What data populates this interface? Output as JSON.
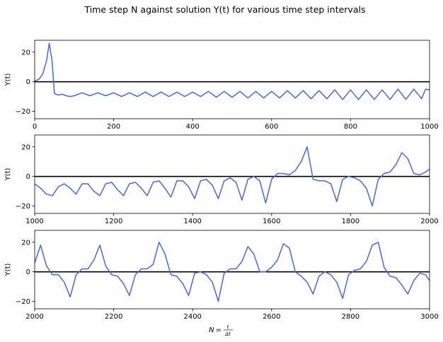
{
  "chart_data": {
    "type": "line",
    "title": "Time step N against solution Y(t) for various time step intervals",
    "xlabel": "N = t/Δt",
    "xlabel_parts": {
      "lhs": "N",
      "eq": "=",
      "num": "t",
      "den": "Δt"
    },
    "line_color": "#4169E1",
    "zero_line_color": "#000000",
    "grid": false,
    "subplots": [
      {
        "ylabel": "Y(t)",
        "xlim": [
          0,
          1000
        ],
        "ylim": [
          -25,
          28
        ],
        "xticks": [
          0,
          200,
          400,
          600,
          800,
          1000
        ],
        "yticks": [
          -20,
          0,
          20
        ],
        "x": [
          0,
          10,
          20,
          30,
          37,
          44,
          50,
          60,
          70,
          80,
          90,
          100,
          120,
          140,
          160,
          180,
          200,
          220,
          240,
          260,
          280,
          300,
          320,
          340,
          360,
          380,
          400,
          420,
          440,
          460,
          480,
          500,
          520,
          540,
          560,
          580,
          600,
          620,
          640,
          660,
          680,
          700,
          720,
          740,
          760,
          780,
          800,
          820,
          840,
          860,
          880,
          900,
          920,
          940,
          960,
          980,
          990,
          1000
        ],
        "y": [
          0.5,
          1.5,
          5,
          14,
          26,
          14,
          -8,
          -9,
          -8.5,
          -9.5,
          -10,
          -9.5,
          -7.5,
          -9.5,
          -7.5,
          -9.5,
          -7.5,
          -10,
          -7.5,
          -10,
          -7,
          -10,
          -7,
          -10,
          -7,
          -10,
          -7,
          -10,
          -6.5,
          -10.5,
          -6.5,
          -10.5,
          -6.5,
          -11,
          -6.5,
          -11,
          -6.5,
          -11,
          -6,
          -11,
          -6,
          -11.5,
          -6,
          -11.5,
          -5.5,
          -12,
          -5.5,
          -12,
          -5.5,
          -12,
          -5.5,
          -12,
          -5,
          -12,
          -5,
          -11.5,
          -5,
          -5.5
        ]
      },
      {
        "ylabel": "Y(t)",
        "xlim": [
          1000,
          2000
        ],
        "ylim": [
          -25,
          28
        ],
        "xticks": [
          1000,
          1200,
          1400,
          1600,
          1800,
          2000
        ],
        "yticks": [
          -20,
          0,
          20
        ],
        "x": [
          1000,
          1015,
          1030,
          1045,
          1060,
          1075,
          1090,
          1105,
          1120,
          1135,
          1150,
          1165,
          1180,
          1195,
          1210,
          1225,
          1240,
          1255,
          1270,
          1285,
          1300,
          1315,
          1330,
          1345,
          1360,
          1375,
          1390,
          1405,
          1420,
          1435,
          1450,
          1465,
          1480,
          1495,
          1510,
          1525,
          1540,
          1555,
          1570,
          1585,
          1600,
          1615,
          1630,
          1645,
          1660,
          1675,
          1690,
          1705,
          1720,
          1735,
          1750,
          1765,
          1780,
          1795,
          1810,
          1825,
          1840,
          1855,
          1870,
          1885,
          1900,
          1915,
          1930,
          1945,
          1960,
          1975,
          1990,
          2000
        ],
        "y": [
          -5,
          -8,
          -12,
          -13,
          -7,
          -5,
          -8,
          -12,
          -5,
          -5,
          -10,
          -13,
          -5,
          -4,
          -9,
          -13,
          -5,
          -4,
          -8,
          -13,
          -4,
          -3,
          -8,
          -14,
          -3,
          -3,
          -7,
          -15,
          -3,
          -2,
          -6,
          -15,
          -3,
          -1,
          -4,
          -16,
          -2,
          0,
          -3,
          -18,
          -2,
          2,
          2,
          1,
          4,
          10,
          20,
          -2,
          -3,
          -3,
          -5,
          -17,
          -2,
          0,
          -1,
          -3,
          -8,
          -20,
          -2,
          2,
          3,
          8,
          16,
          12,
          2,
          1,
          3,
          5
        ]
      },
      {
        "ylabel": "Y(t)",
        "xlim": [
          2000,
          3000
        ],
        "ylim": [
          -25,
          28
        ],
        "xticks": [
          2000,
          2200,
          2400,
          2600,
          2800,
          3000
        ],
        "yticks": [
          -20,
          0,
          20
        ],
        "x": [
          2000,
          2015,
          2030,
          2045,
          2060,
          2075,
          2090,
          2105,
          2120,
          2135,
          2150,
          2165,
          2180,
          2195,
          2210,
          2225,
          2240,
          2255,
          2270,
          2285,
          2300,
          2315,
          2330,
          2345,
          2360,
          2375,
          2390,
          2405,
          2420,
          2435,
          2450,
          2465,
          2480,
          2495,
          2510,
          2525,
          2540,
          2555,
          2570,
          2585,
          2600,
          2615,
          2630,
          2645,
          2660,
          2675,
          2690,
          2705,
          2720,
          2735,
          2750,
          2765,
          2780,
          2795,
          2810,
          2825,
          2840,
          2855,
          2870,
          2885,
          2900,
          2915,
          2930,
          2945,
          2960,
          2975,
          2990,
          3000
        ],
        "y": [
          6,
          18,
          4,
          -2,
          -2,
          -7,
          -17,
          -2,
          2,
          2,
          8,
          18,
          4,
          -2,
          -3,
          -8,
          -16,
          -2,
          2,
          2,
          5,
          20,
          12,
          -2,
          -3,
          -8,
          -16,
          -1,
          0,
          -2,
          -7,
          -20,
          -1,
          2,
          2,
          7,
          17,
          12,
          0,
          0,
          3,
          8,
          19,
          16,
          0,
          -3,
          -7,
          -15,
          -3,
          0,
          -2,
          -7,
          -18,
          -2,
          1,
          2,
          7,
          18,
          20,
          3,
          -3,
          -4,
          -9,
          -15,
          -6,
          -1,
          -2,
          -6
        ]
      }
    ]
  }
}
